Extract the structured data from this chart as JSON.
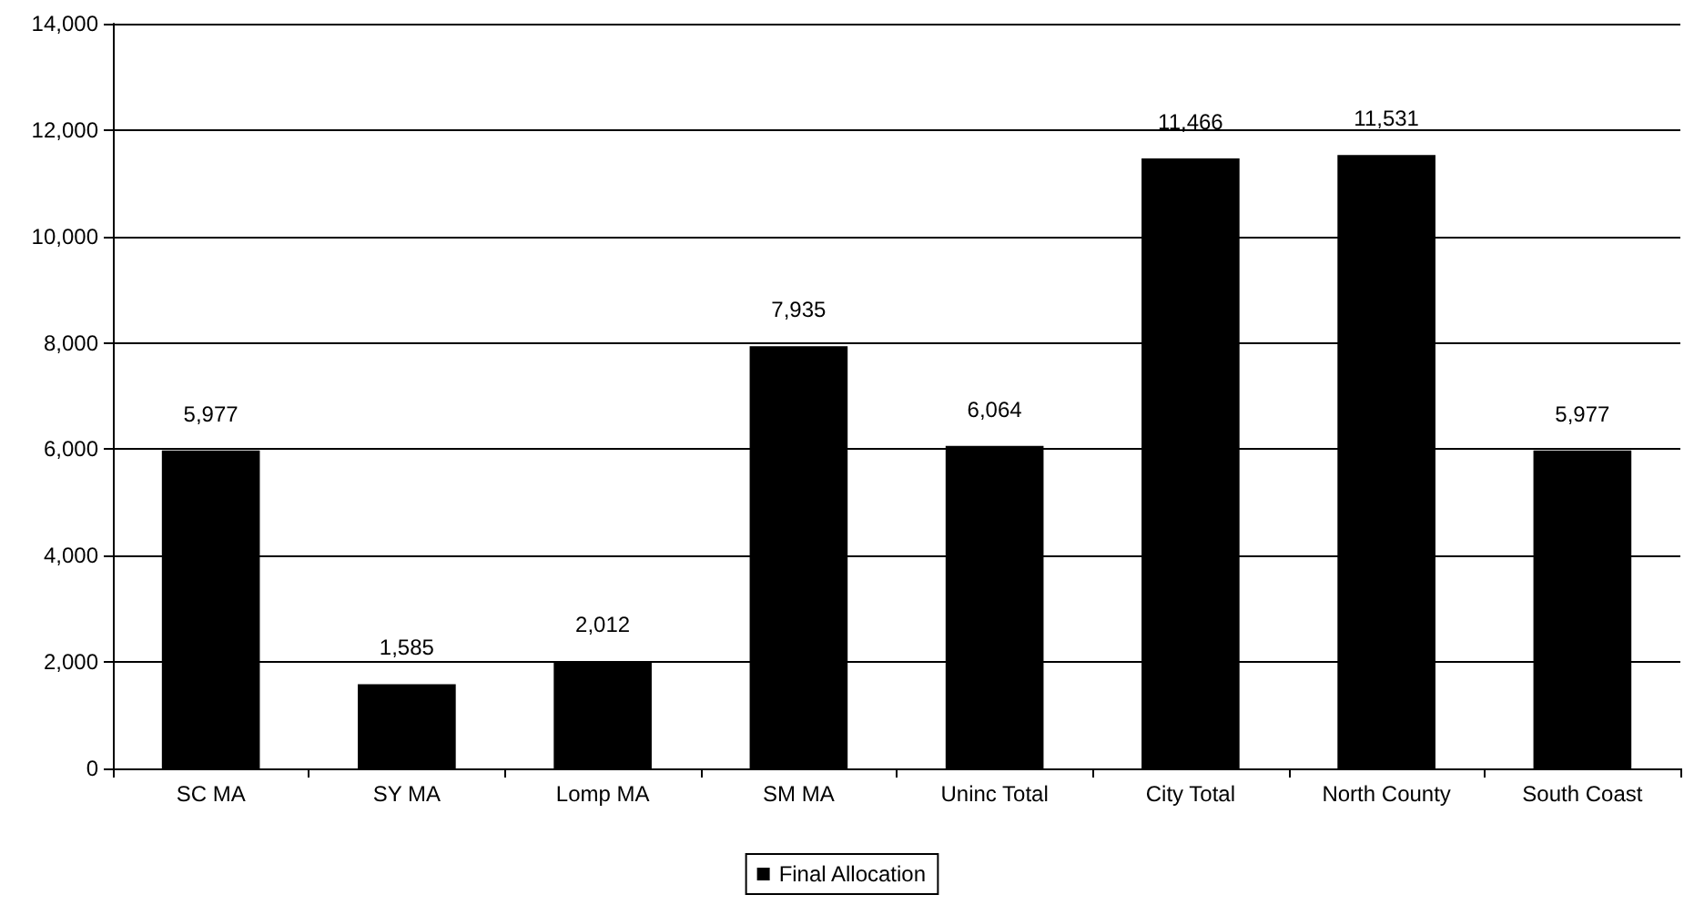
{
  "chart_data": {
    "type": "bar",
    "categories": [
      "SC MA",
      "SY MA",
      "Lomp MA",
      "SM MA",
      "Uninc Total",
      "City Total",
      "North County",
      "South Coast"
    ],
    "series": [
      {
        "name": "Final Allocation",
        "color": "#000000",
        "values": [
          5977,
          1585,
          2012,
          7935,
          6064,
          11466,
          11531,
          5977
        ],
        "value_labels": [
          "5,977",
          "1,585",
          "2,012",
          "7,935",
          "6,064",
          "11,466",
          "11,531",
          "5,977"
        ]
      }
    ],
    "ylim": [
      0,
      14000
    ],
    "yticks": [
      {
        "value": 0,
        "label": "0"
      },
      {
        "value": 2000,
        "label": "2,000"
      },
      {
        "value": 4000,
        "label": "4,000"
      },
      {
        "value": 6000,
        "label": "6,000"
      },
      {
        "value": 8000,
        "label": "8,000"
      },
      {
        "value": 10000,
        "label": "10,000"
      },
      {
        "value": 12000,
        "label": "12,000"
      },
      {
        "value": 14000,
        "label": "14,000"
      }
    ],
    "grid": "y",
    "legend": "bottom"
  }
}
